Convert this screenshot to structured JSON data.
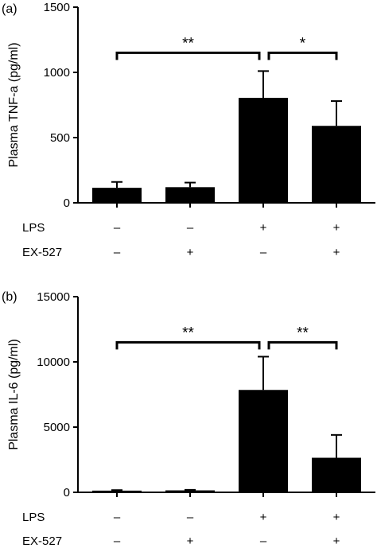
{
  "chart_data": [
    {
      "type": "bar",
      "panel_label": "(a)",
      "ylabel": "Plasma TNF-a (pg/ml)",
      "ylim": [
        0,
        1500
      ],
      "yticks": [
        "0",
        "500",
        "1000",
        "1500"
      ],
      "values": [
        115,
        120,
        805,
        590
      ],
      "errors": [
        45,
        35,
        205,
        190
      ],
      "conditions": [
        {
          "label": "LPS",
          "symbols": [
            "–",
            "–",
            "+",
            "+"
          ]
        },
        {
          "label": "EX-527",
          "symbols": [
            "–",
            "+",
            "–",
            "+"
          ]
        }
      ],
      "significance": [
        {
          "from": 0,
          "to": 2,
          "y": 1150,
          "label": "**"
        },
        {
          "from": 2,
          "to": 3,
          "y": 1150,
          "label": "*"
        }
      ]
    },
    {
      "type": "bar",
      "panel_label": "(b)",
      "ylabel": "Plasma IL-6 (pg/ml)",
      "ylim": [
        0,
        15000
      ],
      "yticks": [
        "0",
        "5000",
        "10000",
        "15000"
      ],
      "values": [
        130,
        150,
        7850,
        2650
      ],
      "errors": [
        40,
        40,
        2550,
        1750
      ],
      "conditions": [
        {
          "label": "LPS",
          "symbols": [
            "–",
            "–",
            "+",
            "+"
          ]
        },
        {
          "label": "EX-527",
          "symbols": [
            "–",
            "+",
            "–",
            "+"
          ]
        }
      ],
      "significance": [
        {
          "from": 0,
          "to": 2,
          "y": 11500,
          "label": "**"
        },
        {
          "from": 2,
          "to": 3,
          "y": 11500,
          "label": "**"
        }
      ]
    }
  ]
}
